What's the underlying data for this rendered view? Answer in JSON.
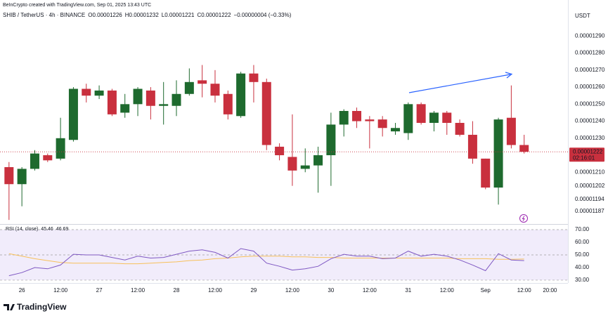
{
  "page": {
    "credit": "BeInCrypto created with TradingView.com, Sep 01, 2025 13:43 UTC",
    "logo": "TradingView"
  },
  "chart_data": [
    {
      "type": "candlestick",
      "title": "SHIB / TetherUS · 4h · BINANCE",
      "currency": "USDT",
      "ohlc_labels": [
        "O",
        "H",
        "L",
        "C"
      ],
      "change": "−0.00000004 (−0.33%)",
      "countdown": "02:16:01",
      "up_color": "#1e6a2e",
      "down_color": "#c9303e",
      "open": [
        1.213e-05,
        1.203e-05,
        1.212e-05,
        1.22e-05,
        1.218e-05,
        1.229e-05,
        1.259e-05,
        1.255e-05,
        1.258e-05,
        1.245e-05,
        1.25e-05,
        1.258e-05,
        1.249e-05,
        1.249e-05,
        1.256e-05,
        1.264e-05,
        1.262e-05,
        1.256e-05,
        1.243e-05,
        1.268e-05,
        1.263e-05,
        1.225e-05,
        1.219e-05,
        1.212e-05,
        1.214e-05,
        1.22e-05,
        1.238e-05,
        1.246e-05,
        1.241e-05,
        1.241e-05,
        1.234e-05,
        1.233e-05,
        1.25e-05,
        1.239e-05,
        1.245e-05,
        1.239e-05,
        1.232e-05,
        1.218e-05,
        1.201e-05,
        1.242e-05,
        1.226e-05
      ],
      "high": [
        1.216e-05,
        1.213e-05,
        1.223e-05,
        1.221e-05,
        1.242e-05,
        1.26e-05,
        1.262e-05,
        1.261e-05,
        1.259e-05,
        1.256e-05,
        1.26e-05,
        1.26e-05,
        1.263e-05,
        1.264e-05,
        1.271e-05,
        1.273e-05,
        1.27e-05,
        1.258e-05,
        1.269e-05,
        1.273e-05,
        1.265e-05,
        1.227e-05,
        1.244e-05,
        1.224e-05,
        1.225e-05,
        1.245e-05,
        1.247e-05,
        1.248e-05,
        1.243e-05,
        1.243e-05,
        1.239e-05,
        1.251e-05,
        1.251e-05,
        1.246e-05,
        1.246e-05,
        1.241e-05,
        1.24e-05,
        1.218e-05,
        1.242e-05,
        1.261e-05,
        1.232e-05
      ],
      "low": [
        1.182e-05,
        1.19e-05,
        1.211e-05,
        1.216e-05,
        1.217e-05,
        1.228e-05,
        1.251e-05,
        1.253e-05,
        1.243e-05,
        1.242e-05,
        1.243e-05,
        1.241e-05,
        1.238e-05,
        1.243e-05,
        1.255e-05,
        1.254e-05,
        1.251e-05,
        1.241e-05,
        1.242e-05,
        1.251e-05,
        1.223e-05,
        1.217e-05,
        1.202e-05,
        1.21e-05,
        1.198e-05,
        1.202e-05,
        1.231e-05,
        1.236e-05,
        1.224e-05,
        1.231e-05,
        1.232e-05,
        1.229e-05,
        1.238e-05,
        1.234e-05,
        1.232e-05,
        1.231e-05,
        1.215e-05,
        1.2e-05,
        1.191e-05,
        1.224e-05,
        1.221e-05
      ],
      "close": [
        1.203e-05,
        1.212e-05,
        1.221e-05,
        1.217e-05,
        1.23e-05,
        1.259e-05,
        1.255e-05,
        1.258e-05,
        1.244e-05,
        1.25e-05,
        1.259e-05,
        1.249e-05,
        1.25e-05,
        1.256e-05,
        1.263e-05,
        1.262e-05,
        1.255e-05,
        1.244e-05,
        1.268e-05,
        1.263e-05,
        1.226e-05,
        1.22e-05,
        1.211e-05,
        1.214e-05,
        1.22e-05,
        1.238e-05,
        1.246e-05,
        1.24e-05,
        1.24e-05,
        1.236e-05,
        1.236e-05,
        1.25e-05,
        1.239e-05,
        1.245e-05,
        1.239e-05,
        1.232e-05,
        1.218e-05,
        1.201e-05,
        1.241e-05,
        1.226e-05,
        1.222e-05
      ],
      "xlim": [
        -0.7,
        43.4
      ],
      "ylim": [
        1.18e-05,
        1.305e-05
      ],
      "yticks": [
        {
          "value": 1.29e-05,
          "label": "0.00001290"
        },
        {
          "value": 1.28e-05,
          "label": "0.00001280"
        },
        {
          "value": 1.27e-05,
          "label": "0.00001270"
        },
        {
          "value": 1.26e-05,
          "label": "0.00001260"
        },
        {
          "value": 1.25e-05,
          "label": "0.00001250"
        },
        {
          "value": 1.24e-05,
          "label": "0.00001240"
        },
        {
          "value": 1.23e-05,
          "label": "0.00001230"
        },
        {
          "value": 1.21e-05,
          "label": "0.00001210"
        },
        1.202e-05,
        1.194e-05,
        1.187e-05
      ]
    },
    {
      "type": "line",
      "title": "RSI (14, close)",
      "series": [
        {
          "color": "#7e57c2",
          "values": [
            33.5,
            36,
            40,
            39,
            42,
            50.5,
            50,
            50,
            48,
            46,
            49,
            47.5,
            48,
            50.5,
            53,
            54,
            52,
            47.5,
            55,
            53,
            43.5,
            41,
            38,
            39,
            41,
            47,
            50.5,
            49,
            49,
            47,
            47.5,
            53,
            49,
            50.5,
            49,
            46,
            42,
            37.5,
            51,
            46,
            45.46
          ]
        },
        {
          "color": "#f7c05a",
          "values": [
            51,
            49,
            47,
            45.5,
            44,
            43.5,
            43.5,
            43.5,
            43.5,
            43,
            43,
            43.5,
            44,
            44.5,
            45.5,
            46,
            47,
            47.5,
            48.5,
            49,
            49,
            49,
            48.5,
            48.5,
            48,
            48,
            47.5,
            47.5,
            47.5,
            47.5,
            47.5,
            47.5,
            47.5,
            47.5,
            47.5,
            47,
            47,
            47,
            46.5,
            46.5,
            46.69
          ]
        }
      ],
      "levels": [
        70,
        50,
        30
      ],
      "band_color": "#f1ecfb",
      "xlim": [
        -0.7,
        43.4
      ],
      "ylim": [
        28.3,
        73.9
      ],
      "yticks": [
        {
          "value": 70,
          "label": "70.00"
        },
        {
          "value": 60,
          "label": "60.00"
        },
        {
          "value": 50,
          "label": "50.00"
        },
        {
          "value": 40,
          "label": "40.00"
        },
        {
          "value": 30,
          "label": "30.00"
        }
      ],
      "xticks": [
        {
          "value": 1,
          "label": "26"
        },
        {
          "value": 4,
          "label": "12:00"
        },
        {
          "value": 7,
          "label": "27"
        },
        {
          "value": 10,
          "label": "12:00"
        },
        {
          "value": 13,
          "label": "28"
        },
        {
          "value": 16,
          "label": "12:00"
        },
        {
          "value": 19,
          "label": "29"
        },
        {
          "value": 22,
          "label": "12:00"
        },
        {
          "value": 25,
          "label": "30"
        },
        {
          "value": 28,
          "label": "12:00"
        },
        {
          "value": 31,
          "label": "31"
        },
        {
          "value": 34,
          "label": "12:00"
        },
        {
          "value": 37,
          "label": "Sep"
        },
        {
          "value": 40,
          "label": "12:00"
        },
        {
          "value": 42,
          "label": "20:00"
        }
      ]
    }
  ]
}
